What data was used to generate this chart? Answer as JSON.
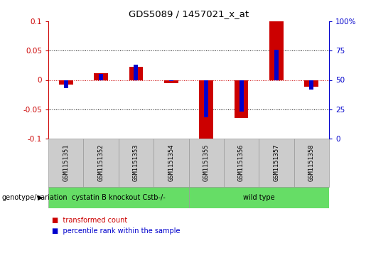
{
  "title": "GDS5089 / 1457021_x_at",
  "samples": [
    "GSM1151351",
    "GSM1151352",
    "GSM1151353",
    "GSM1151354",
    "GSM1151355",
    "GSM1151356",
    "GSM1151357",
    "GSM1151358"
  ],
  "red_values": [
    -0.008,
    0.012,
    0.022,
    -0.005,
    -0.1,
    -0.065,
    0.1,
    -0.012
  ],
  "blue_percentiles": [
    43,
    55,
    63,
    49,
    18,
    23,
    76,
    42
  ],
  "ylim": [
    -0.1,
    0.1
  ],
  "yticks_left": [
    -0.1,
    -0.05,
    0.0,
    0.05,
    0.1
  ],
  "yticks_left_labels": [
    "-0.1",
    "-0.05",
    "0",
    "0.05",
    "0.1"
  ],
  "yticks_right": [
    0,
    25,
    50,
    75,
    100
  ],
  "yticks_right_labels": [
    "0",
    "25",
    "50",
    "75",
    "100%"
  ],
  "red_color": "#CC0000",
  "blue_color": "#0000CC",
  "red_bar_width": 0.4,
  "blue_bar_width": 0.12,
  "groups": [
    {
      "label": "cystatin B knockout Cstb-/-",
      "start": 0,
      "end": 3,
      "color": "#66DD66"
    },
    {
      "label": "wild type",
      "start": 4,
      "end": 7,
      "color": "#66DD66"
    }
  ],
  "group_label": "genotype/variation",
  "legend_red": "transformed count",
  "legend_blue": "percentile rank within the sample",
  "dotted_lines": [
    -0.05,
    0.05
  ],
  "zero_line_color": "#CC0000",
  "sample_box_color": "#CCCCCC",
  "sample_box_edge": "#999999",
  "bg_color": "#FFFFFF"
}
